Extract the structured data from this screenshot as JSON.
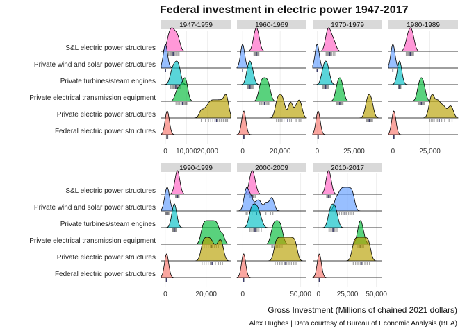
{
  "chart_data": {
    "type": "ridgeline",
    "title": "Federal investment in electric power 1947-2017",
    "xlabel": "Gross Investment (Millions of chained 2021 dollars)",
    "caption": "Alex Hughes | Data courtesy of Bureau of Economic Analysis (BEA)",
    "legend": "none",
    "grid": true,
    "categories": [
      "S&L electric power structures",
      "Private wind and solar power structures",
      "Private turbines/steam engines",
      "Private electrical transmission equipment",
      "Private electric power structures",
      "Federal electric power structures"
    ],
    "category_colors": [
      "#FF61C3",
      "#619CFF",
      "#00BFC4",
      "#00BA38",
      "#B79F00",
      "#F8766D"
    ],
    "panels": [
      {
        "label": "1947-1959",
        "xlim": [
          -2000,
          31000
        ],
        "xticks": [
          {
            "value": 0,
            "label": "0"
          },
          {
            "value": 10000,
            "label": "10,000"
          },
          {
            "value": 20000,
            "label": "20,000"
          }
        ],
        "series": {
          "S&L electric power structures": [
            1000,
            1500,
            2000,
            2400,
            2800,
            3200,
            3500,
            4000,
            4500,
            5000,
            5500,
            6000,
            6500
          ],
          "Private wind and solar power structures": [
            0,
            0,
            0,
            0,
            0,
            0,
            0,
            0,
            0,
            0,
            0,
            0,
            0
          ],
          "Private turbines/steam engines": [
            2500,
            3000,
            3500,
            3800,
            4200,
            4600,
            5000,
            5300,
            5700,
            6000,
            6300,
            6600,
            7000
          ],
          "Private electrical transmission equipment": [
            5000,
            5600,
            6200,
            6800,
            7400,
            8000,
            8400,
            8800,
            9200,
            9500,
            9800,
            10000,
            10200
          ],
          "Private electric power structures": [
            17000,
            19000,
            20500,
            21500,
            22500,
            23500,
            24500,
            25500,
            26500,
            27500,
            28500,
            29000,
            29500
          ],
          "Federal electric power structures": [
            500,
            600,
            650,
            700,
            750,
            800,
            850,
            900,
            950,
            1000,
            1050,
            1100,
            1150
          ]
        }
      },
      {
        "label": "1960-1969",
        "xlim": [
          -3000,
          34000
        ],
        "xticks": [
          {
            "value": 0,
            "label": "0"
          },
          {
            "value": 20000,
            "label": "20,000"
          }
        ],
        "series": {
          "S&L electric power structures": [
            6000,
            6300,
            6600,
            6900,
            7200,
            7500,
            7800,
            8100,
            8400,
            8700
          ],
          "Private wind and solar power structures": [
            0,
            0,
            0,
            0,
            0,
            0,
            0,
            0,
            0,
            0
          ],
          "Private turbines/steam engines": [
            2500,
            2800,
            3100,
            3400,
            3700,
            4000,
            4400,
            4800,
            5200,
            5600
          ],
          "Private electrical transmission equipment": [
            9000,
            9600,
            10200,
            10800,
            11400,
            12000,
            12600,
            13200,
            13800,
            14400
          ],
          "Private electric power structures": [
            18000,
            19000,
            20000,
            21000,
            22000,
            25000,
            26000,
            28500,
            30000,
            31000
          ],
          "Federal electric power structures": [
            400,
            450,
            500,
            550,
            600,
            650,
            700,
            750,
            800,
            850
          ]
        }
      },
      {
        "label": "1970-1979",
        "xlim": [
          -3000,
          44000
        ],
        "xticks": [
          {
            "value": 0,
            "label": "0"
          },
          {
            "value": 25000,
            "label": "25,000"
          }
        ],
        "series": {
          "S&L electric power structures": [
            6000,
            6500,
            7000,
            7500,
            8000,
            8500,
            9000,
            10000,
            11000,
            12000
          ],
          "Private wind and solar power structures": [
            0,
            0,
            0,
            0,
            0,
            0,
            0,
            0,
            0,
            0
          ],
          "Private turbines/steam engines": [
            3500,
            4000,
            4500,
            5000,
            5500,
            6000,
            6500,
            7000,
            7500,
            8000
          ],
          "Private electrical transmission equipment": [
            13000,
            13500,
            14000,
            14500,
            15000,
            15500,
            16000,
            16500,
            17000,
            17500
          ],
          "Private electric power structures": [
            33000,
            33500,
            34000,
            34500,
            35000,
            35500,
            36000,
            36500,
            37000,
            37500
          ],
          "Federal electric power structures": [
            400,
            450,
            500,
            550,
            600,
            650,
            700,
            750,
            800,
            850
          ]
        }
      },
      {
        "label": "1980-1989",
        "xlim": [
          -3000,
          44000
        ],
        "xticks": [
          {
            "value": 0,
            "label": "0"
          },
          {
            "value": 25000,
            "label": "25,000"
          }
        ],
        "series": {
          "S&L electric power structures": [
            9000,
            10000,
            10500,
            11000,
            11500,
            12000,
            12500,
            13000,
            13500,
            14000
          ],
          "Private wind and solar power structures": [
            0,
            0,
            0,
            0,
            0,
            0,
            0,
            0,
            0,
            0
          ],
          "Private turbines/steam engines": [
            3500,
            3800,
            4000,
            4200,
            4400,
            4600,
            4800,
            5000,
            5200,
            5400
          ],
          "Private electrical transmission equipment": [
            17000,
            17500,
            18000,
            18500,
            19000,
            19500,
            20000,
            20500,
            21000,
            21500
          ],
          "Private electric power structures": [
            25000,
            26000,
            27000,
            28000,
            30000,
            31000,
            33000,
            35000,
            38000,
            40000
          ],
          "Federal electric power structures": [
            400,
            450,
            500,
            550,
            600,
            650,
            700,
            750,
            800,
            850
          ]
        }
      },
      {
        "label": "1990-1999",
        "xlim": [
          -2000,
          32000
        ],
        "xticks": [
          {
            "value": 0,
            "label": "0"
          },
          {
            "value": 20000,
            "label": "20,000"
          }
        ],
        "series": {
          "S&L electric power structures": [
            5000,
            5200,
            5400,
            5600,
            5800,
            6000,
            6200,
            6400,
            6600,
            6800
          ],
          "Private wind and solar power structures": [
            0,
            200,
            400,
            600,
            800,
            1000,
            1200,
            1400,
            1600,
            1800
          ],
          "Private turbines/steam engines": [
            3500,
            3700,
            3900,
            4100,
            4300,
            4500,
            4700,
            4900,
            5100,
            5300
          ],
          "Private electrical transmission equipment": [
            18000,
            19000,
            20000,
            21000,
            22000,
            23000,
            24000,
            25000,
            26000,
            28000
          ],
          "Private electric power structures": [
            18000,
            19000,
            20000,
            21000,
            22000,
            23000,
            24500,
            26000,
            27000,
            28000
          ],
          "Federal electric power structures": [
            400,
            450,
            500,
            550,
            600,
            650,
            700,
            750,
            800,
            850
          ]
        }
      },
      {
        "label": "2000-2009",
        "xlim": [
          -5000,
          55000
        ],
        "xticks": [
          {
            "value": 0,
            "label": "0"
          },
          {
            "value": 50000,
            "label": "50,000"
          }
        ],
        "series": {
          "S&L electric power structures": [
            6000,
            6500,
            7000,
            7500,
            8000,
            8500,
            9000,
            9500,
            10000,
            11000
          ],
          "Private wind and solar power structures": [
            2000,
            3000,
            4000,
            6000,
            8000,
            12000,
            15000,
            20000,
            24000,
            26000
          ],
          "Private turbines/steam engines": [
            6000,
            7000,
            8000,
            9000,
            10000,
            11000,
            12000,
            13000,
            14000,
            16000
          ],
          "Private electrical transmission equipment": [
            25000,
            26000,
            27000,
            28000,
            29000,
            30000,
            31000,
            32000,
            33000,
            34000
          ],
          "Private electric power structures": [
            28000,
            30000,
            32000,
            34000,
            36000,
            38000,
            40000,
            42000,
            44000,
            46000
          ],
          "Federal electric power structures": [
            500,
            550,
            600,
            650,
            700,
            750,
            800,
            850,
            900,
            950
          ]
        }
      },
      {
        "label": "2010-2017",
        "xlim": [
          -5000,
          55000
        ],
        "xticks": [
          {
            "value": 0,
            "label": "0"
          },
          {
            "value": 25000,
            "label": "25,000"
          },
          {
            "value": 50000,
            "label": "50,000"
          }
        ],
        "series": {
          "S&L electric power structures": [
            7000,
            7500,
            8000,
            8500,
            9000,
            9500,
            10000,
            10500
          ],
          "Private wind and solar power structures": [
            15000,
            18000,
            20000,
            22000,
            24000,
            26000,
            28000,
            30000
          ],
          "Private turbines/steam engines": [
            9000,
            10000,
            11000,
            12000,
            13000,
            14000,
            15000,
            16000
          ],
          "Private electrical transmission equipment": [
            34000,
            35000,
            35500,
            36000,
            36500,
            37000,
            38000,
            39000
          ],
          "Private electric power structures": [
            30000,
            32000,
            34000,
            36000,
            38000,
            40000,
            42000,
            44000
          ],
          "Federal electric power structures": [
            500,
            550,
            600,
            650,
            700,
            750,
            800,
            850
          ]
        }
      }
    ]
  }
}
